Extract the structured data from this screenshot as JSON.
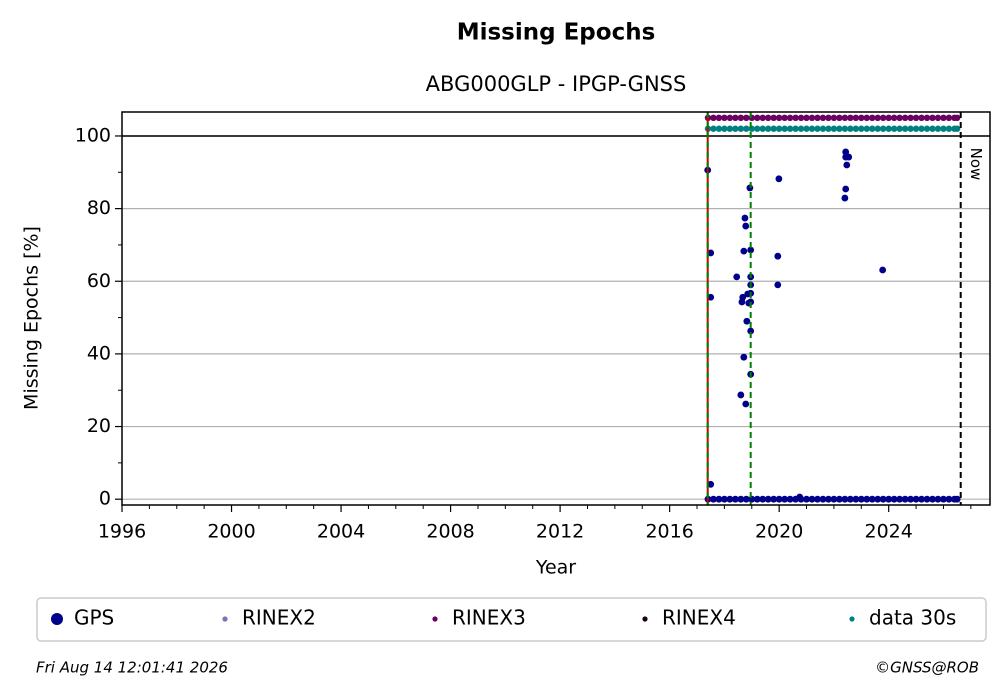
{
  "chart_data": {
    "type": "scatter",
    "title": "Missing Epochs",
    "subtitle": "ABG000GLP - IPGP-GNSS",
    "xlabel": "Year",
    "ylabel": "Missing Epochs [%]",
    "xlim": [
      1996,
      2027.7
    ],
    "ylim": [
      -1.6,
      106.6
    ],
    "xticks": [
      1996,
      2000,
      2004,
      2008,
      2012,
      2016,
      2020,
      2024
    ],
    "xminorticks": [
      1997,
      1998,
      1999,
      2001,
      2002,
      2003,
      2005,
      2006,
      2007,
      2009,
      2010,
      2011,
      2013,
      2014,
      2015,
      2017,
      2018,
      2019,
      2021,
      2022,
      2023,
      2025,
      2026,
      2027
    ],
    "yticks": [
      0,
      20,
      40,
      60,
      80,
      100
    ],
    "yminorticks": [
      10,
      30,
      50,
      70,
      90
    ],
    "grid": true,
    "hlines": [
      {
        "y": 100,
        "color": "#000000"
      }
    ],
    "vlines": [
      {
        "x": 2017.39,
        "color": "#d00000",
        "dash": false
      },
      {
        "x": 2017.39,
        "color": "#007f00",
        "dash": true
      },
      {
        "x": 2018.96,
        "color": "#007f00",
        "dash": true
      },
      {
        "x": 2026.63,
        "color": "#000000",
        "dash": true,
        "label": "Now"
      }
    ],
    "series": [
      {
        "name": "GPS",
        "color": "#00008b",
        "x": [
          2017.4,
          2017.6,
          2017.8,
          2018.0,
          2018.2,
          2018.4,
          2018.6,
          2018.8,
          2019.0,
          2019.2,
          2019.4,
          2019.6,
          2019.8,
          2020.0,
          2020.2,
          2020.4,
          2020.6,
          2020.8,
          2021.0,
          2021.2,
          2021.4,
          2021.6,
          2021.8,
          2022.0,
          2022.2,
          2022.4,
          2022.6,
          2022.8,
          2023.0,
          2023.2,
          2023.4,
          2023.6,
          2023.8,
          2024.0,
          2024.2,
          2024.4,
          2024.6,
          2024.8,
          2025.0,
          2025.2,
          2025.4,
          2025.6,
          2025.8,
          2026.0,
          2026.2,
          2026.4,
          2026.5,
          2017.39,
          2017.5,
          2017.5,
          2017.5,
          2018.45,
          2018.6,
          2018.64,
          2018.67,
          2018.71,
          2018.71,
          2018.75,
          2018.78,
          2018.78,
          2018.82,
          2018.85,
          2018.89,
          2018.93,
          2018.96,
          2018.96,
          2018.96,
          2018.96,
          2018.96,
          2018.96,
          2018.96,
          2019.99,
          2019.95,
          2019.95,
          2020.75,
          2022.43,
          2022.43,
          2022.47,
          2022.43,
          2022.4,
          2022.54,
          2023.78
        ],
        "values": [
          0,
          0,
          0,
          0,
          0,
          0,
          0,
          0,
          0,
          0,
          0,
          0,
          0,
          0,
          0,
          0,
          0,
          0,
          0,
          0,
          0,
          0,
          0,
          0,
          0,
          0,
          0,
          0,
          0,
          0,
          0,
          0,
          0,
          0,
          0,
          0,
          0,
          0,
          0,
          0,
          0,
          0,
          0,
          0,
          0,
          0,
          0,
          90.6,
          67.8,
          55.6,
          4.1,
          61.2,
          28.7,
          54.3,
          55.6,
          68.3,
          39.1,
          77.4,
          75.2,
          26.2,
          49.0,
          56.5,
          54.0,
          85.7,
          68.6,
          61.2,
          59.0,
          56.7,
          54.3,
          46.3,
          34.4,
          88.2,
          66.9,
          59.0,
          0.6,
          95.6,
          94.2,
          92.0,
          85.4,
          82.9,
          94.2,
          63.1
        ]
      },
      {
        "name": "RINEX2",
        "color": "#7b72b8",
        "x": [],
        "values": []
      },
      {
        "name": "RINEX3",
        "color": "#6b005f",
        "x": [
          2017.4,
          2017.6,
          2017.8,
          2018.0,
          2018.2,
          2018.4,
          2018.6,
          2018.8,
          2019.0,
          2019.2,
          2019.4,
          2019.6,
          2019.8,
          2020.0,
          2020.2,
          2020.4,
          2020.6,
          2020.8,
          2021.0,
          2021.2,
          2021.4,
          2021.6,
          2021.8,
          2022.0,
          2022.2,
          2022.4,
          2022.6,
          2022.8,
          2023.0,
          2023.2,
          2023.4,
          2023.6,
          2023.8,
          2024.0,
          2024.2,
          2024.4,
          2024.6,
          2024.8,
          2025.0,
          2025.2,
          2025.4,
          2025.6,
          2025.8,
          2026.0,
          2026.2,
          2026.4,
          2026.5
        ],
        "values": [
          105,
          105,
          105,
          105,
          105,
          105,
          105,
          105,
          105,
          105,
          105,
          105,
          105,
          105,
          105,
          105,
          105,
          105,
          105,
          105,
          105,
          105,
          105,
          105,
          105,
          105,
          105,
          105,
          105,
          105,
          105,
          105,
          105,
          105,
          105,
          105,
          105,
          105,
          105,
          105,
          105,
          105,
          105,
          105,
          105,
          105,
          105
        ]
      },
      {
        "name": "RINEX4",
        "color": "#1a0018",
        "x": [],
        "values": []
      },
      {
        "name": "data 30s",
        "color": "#008080",
        "x": [
          2017.4,
          2017.6,
          2017.8,
          2018.0,
          2018.2,
          2018.4,
          2018.6,
          2018.8,
          2019.0,
          2019.2,
          2019.4,
          2019.6,
          2019.8,
          2020.0,
          2020.2,
          2020.4,
          2020.6,
          2020.8,
          2021.0,
          2021.2,
          2021.4,
          2021.6,
          2021.8,
          2022.0,
          2022.2,
          2022.4,
          2022.6,
          2022.8,
          2023.0,
          2023.2,
          2023.4,
          2023.6,
          2023.8,
          2024.0,
          2024.2,
          2024.4,
          2024.6,
          2024.8,
          2025.0,
          2025.2,
          2025.4,
          2025.6,
          2025.8,
          2026.0,
          2026.2,
          2026.4,
          2026.5
        ],
        "values": [
          102,
          102,
          102,
          102,
          102,
          102,
          102,
          102,
          102,
          102,
          102,
          102,
          102,
          102,
          102,
          102,
          102,
          102,
          102,
          102,
          102,
          102,
          102,
          102,
          102,
          102,
          102,
          102,
          102,
          102,
          102,
          102,
          102,
          102,
          102,
          102,
          102,
          102,
          102,
          102,
          102,
          102,
          102,
          102,
          102,
          102,
          102
        ]
      }
    ],
    "footer_left": "Fri Aug 14 12:01:41 2026",
    "footer_right": "©GNSS@ROB"
  }
}
